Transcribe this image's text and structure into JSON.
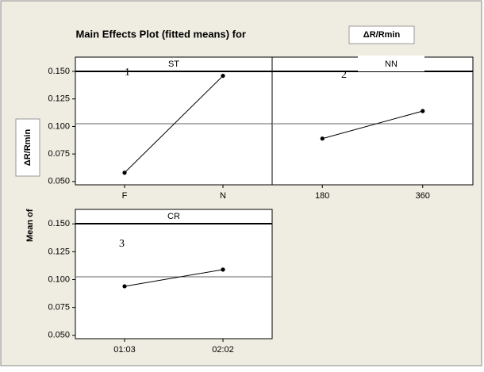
{
  "title": "Main Effects Plot (fitted means) for",
  "title_response": "ΔR/Rmin",
  "y_label": "Mean of",
  "y_label_response": "ΔR/Rmin",
  "chart_data": [
    {
      "type": "line",
      "panel_title": "ST",
      "annotation": "1",
      "color": "#000000",
      "categories": [
        "F",
        "N"
      ],
      "values": [
        0.058,
        0.146
      ],
      "reference_line": 0.1025,
      "ylim": [
        0.047,
        0.163
      ],
      "yticks": [
        {
          "value": 0.05,
          "label": "0.050"
        },
        {
          "value": 0.075,
          "label": "0.075"
        },
        {
          "value": 0.1,
          "label": "0.100"
        },
        {
          "value": 0.125,
          "label": "0.125"
        },
        {
          "value": 0.15,
          "label": "0.150"
        }
      ]
    },
    {
      "type": "line",
      "panel_title": "NN",
      "annotation": "2",
      "color": "#000000",
      "categories": [
        "180",
        "360"
      ],
      "values": [
        0.089,
        0.114
      ],
      "reference_line": 0.1025,
      "ylim": [
        0.047,
        0.163
      ]
    },
    {
      "type": "line",
      "panel_title": "CR",
      "annotation": "3",
      "color": "#000000",
      "categories": [
        "01:03",
        "02:02"
      ],
      "values": [
        0.094,
        0.109
      ],
      "reference_line": 0.1025,
      "ylim": [
        0.047,
        0.163
      ],
      "yticks": [
        {
          "value": 0.05,
          "label": "0.050"
        },
        {
          "value": 0.075,
          "label": "0.075"
        },
        {
          "value": 0.1,
          "label": "0.100"
        },
        {
          "value": 0.125,
          "label": "0.125"
        },
        {
          "value": 0.15,
          "label": "0.150"
        }
      ]
    }
  ]
}
